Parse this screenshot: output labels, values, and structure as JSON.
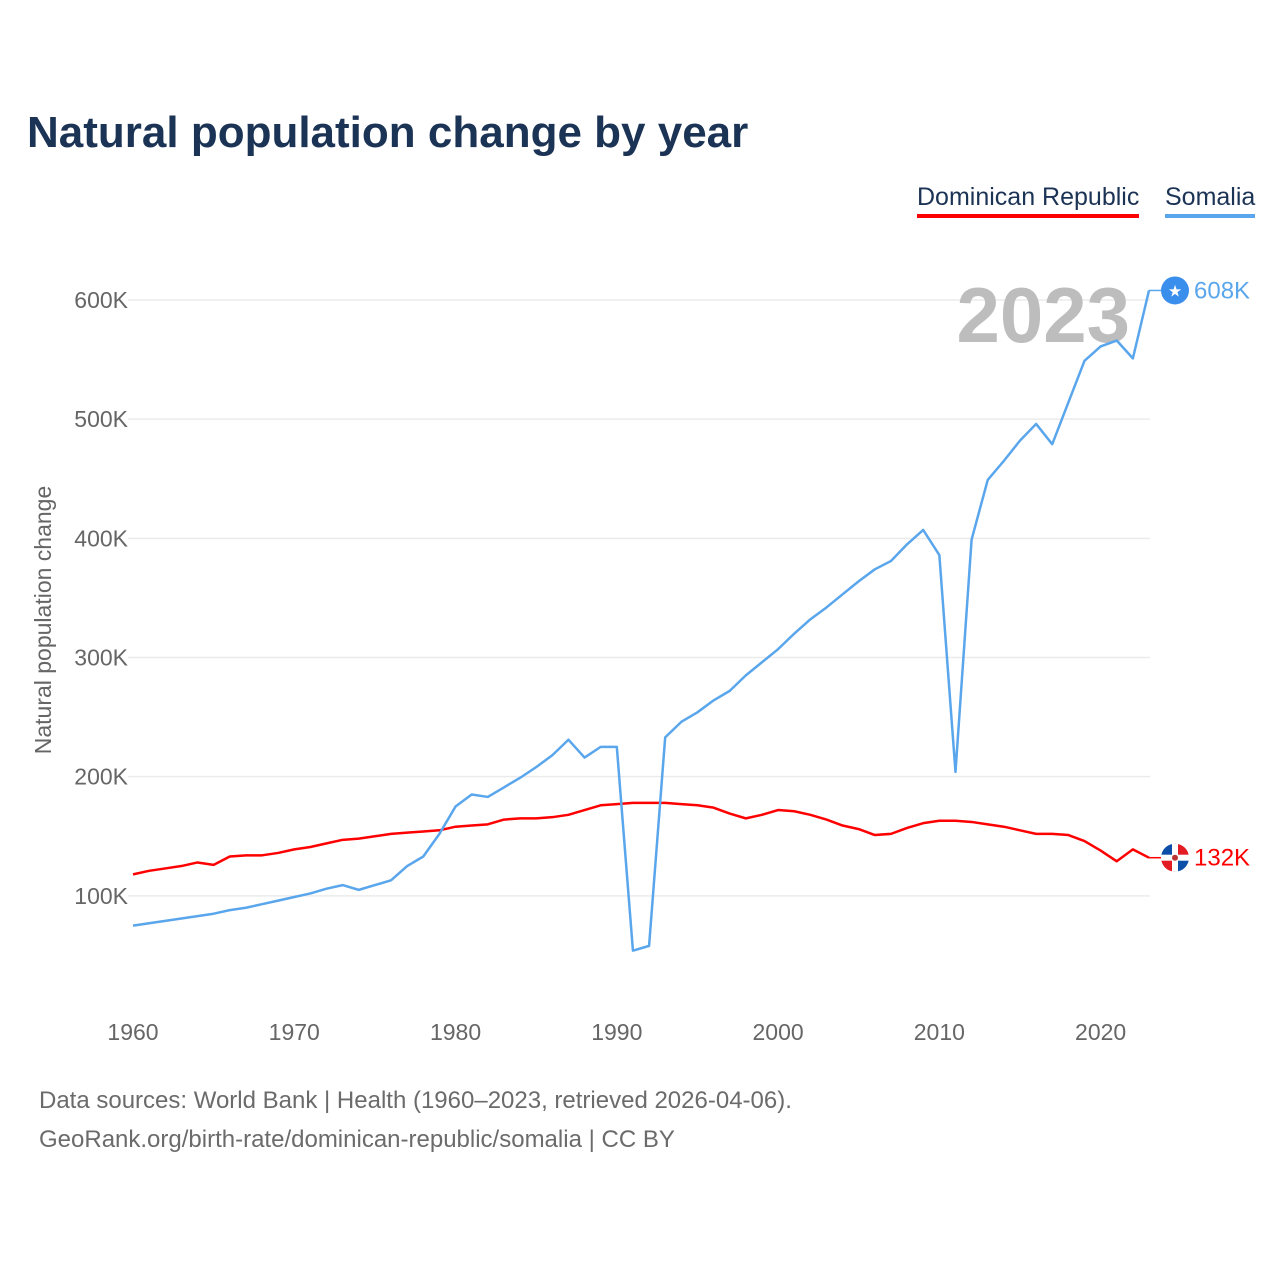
{
  "chart_data": {
    "type": "line",
    "title": "Natural population change by year",
    "ylabel": "Natural population change",
    "xlabel": "",
    "xlim": [
      1960,
      2023
    ],
    "ylim": [
      0,
      650000
    ],
    "x_ticks": [
      "1960",
      "1970",
      "1980",
      "1990",
      "2000",
      "2010",
      "2020"
    ],
    "y_ticks": [
      {
        "v": 100000,
        "label": "100K"
      },
      {
        "v": 200000,
        "label": "200K"
      },
      {
        "v": 300000,
        "label": "300K"
      },
      {
        "v": 400000,
        "label": "400K"
      },
      {
        "v": 500000,
        "label": "500K"
      },
      {
        "v": 600000,
        "label": "600K"
      }
    ],
    "grid": true,
    "legend_position": "top-right",
    "year_watermark": "2023",
    "series": [
      {
        "name": "Dominican Republic",
        "color": "#ff0000",
        "end_label": "132K",
        "values": [
          118,
          121,
          123,
          125,
          128,
          126,
          133,
          134,
          134,
          136,
          139,
          141,
          144,
          147,
          148,
          150,
          152,
          153,
          154,
          155,
          158,
          159,
          160,
          164,
          165,
          165,
          166,
          168,
          172,
          176,
          177,
          178,
          178,
          178,
          177,
          176,
          174,
          169,
          165,
          168,
          172,
          171,
          168,
          164,
          159,
          156,
          151,
          152,
          157,
          161,
          163,
          163,
          162,
          160,
          158,
          155,
          152,
          152,
          151,
          146,
          138,
          129,
          139,
          132
        ]
      },
      {
        "name": "Somalia",
        "color": "#5aa6ec",
        "end_label": "608K",
        "values": [
          75,
          77,
          79,
          81,
          83,
          85,
          88,
          90,
          93,
          96,
          99,
          102,
          106,
          109,
          105,
          109,
          113,
          125,
          133,
          152,
          175,
          185,
          183,
          191,
          199,
          208,
          218,
          231,
          216,
          225,
          225,
          54,
          58,
          233,
          246,
          254,
          264,
          272,
          285,
          296,
          307,
          320,
          332,
          342,
          353,
          364,
          374,
          381,
          395,
          407,
          386,
          204,
          399,
          449,
          465,
          482,
          496,
          479,
          514,
          549,
          561,
          566,
          551,
          608
        ]
      }
    ],
    "value_unit_multiplier": 1000
  },
  "footer": {
    "line1": "Data sources: World Bank | Health (1960–2023, retrieved 2026-04-06).",
    "line2": "GeoRank.org/birth-rate/dominican-republic/somalia | CC BY"
  }
}
